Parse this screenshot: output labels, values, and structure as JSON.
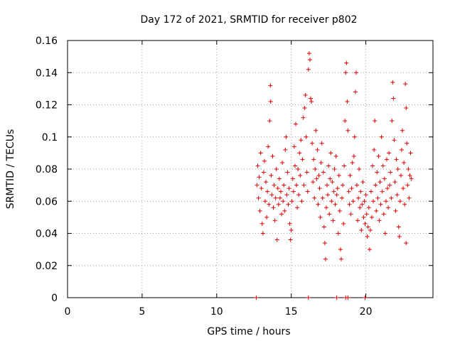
{
  "chart_data": {
    "type": "scatter",
    "title": "Day 172 of 2021, SRMTID for receiver p802",
    "xlabel": "GPS time / hours",
    "ylabel": "SRMTID / TECUs",
    "xlim": [
      0,
      24.5
    ],
    "ylim": [
      0,
      0.16
    ],
    "x_ticks": [
      0,
      5,
      10,
      15,
      20
    ],
    "x_tick_labels": [
      "0",
      "5",
      "10",
      "15",
      "20"
    ],
    "y_ticks": [
      0,
      0.02,
      0.04,
      0.06,
      0.08,
      0.1,
      0.12,
      0.14,
      0.16
    ],
    "y_tick_labels": [
      "0",
      "0.02",
      "0.04",
      "0.06",
      "0.08",
      "0.1",
      "0.12",
      "0.14",
      "0.16"
    ],
    "grid": true,
    "marker": "+",
    "series": [
      {
        "name": "SRMTID",
        "color": "#e00000",
        "points": [
          [
            12.65,
            0.0
          ],
          [
            16.15,
            0.0
          ],
          [
            18.05,
            0.0
          ],
          [
            18.65,
            0.0
          ],
          [
            18.8,
            0.0
          ],
          [
            19.95,
            0.0
          ],
          [
            12.7,
            0.07
          ],
          [
            12.75,
            0.082
          ],
          [
            12.8,
            0.062
          ],
          [
            12.85,
            0.075
          ],
          [
            12.9,
            0.054
          ],
          [
            12.95,
            0.09
          ],
          [
            13.0,
            0.068
          ],
          [
            13.05,
            0.046
          ],
          [
            13.1,
            0.04
          ],
          [
            13.15,
            0.078
          ],
          [
            13.2,
            0.085
          ],
          [
            13.25,
            0.06
          ],
          [
            13.3,
            0.072
          ],
          [
            13.35,
            0.05
          ],
          [
            13.4,
            0.066
          ],
          [
            13.45,
            0.094
          ],
          [
            13.5,
            0.058
          ],
          [
            13.55,
            0.11
          ],
          [
            13.6,
            0.132
          ],
          [
            13.62,
            0.122
          ],
          [
            13.65,
            0.076
          ],
          [
            13.7,
            0.064
          ],
          [
            13.75,
            0.088
          ],
          [
            13.8,
            0.056
          ],
          [
            13.85,
            0.07
          ],
          [
            13.9,
            0.048
          ],
          [
            13.95,
            0.062
          ],
          [
            14.0,
            0.08
          ],
          [
            14.05,
            0.036
          ],
          [
            14.1,
            0.068
          ],
          [
            14.15,
            0.058
          ],
          [
            14.2,
            0.074
          ],
          [
            14.25,
            0.062
          ],
          [
            14.3,
            0.066
          ],
          [
            14.35,
            0.052
          ],
          [
            14.4,
            0.084
          ],
          [
            14.45,
            0.06
          ],
          [
            14.5,
            0.07
          ],
          [
            14.55,
            0.054
          ],
          [
            14.6,
            0.092
          ],
          [
            14.65,
            0.1
          ],
          [
            14.7,
            0.064
          ],
          [
            14.75,
            0.078
          ],
          [
            14.8,
            0.058
          ],
          [
            14.85,
            0.068
          ],
          [
            14.9,
            0.046
          ],
          [
            14.95,
            0.036
          ],
          [
            15.0,
            0.042
          ],
          [
            15.05,
            0.06
          ],
          [
            15.1,
            0.074
          ],
          [
            15.15,
            0.066
          ],
          [
            15.2,
            0.094
          ],
          [
            15.25,
            0.082
          ],
          [
            15.3,
            0.108
          ],
          [
            15.35,
            0.07
          ],
          [
            15.4,
            0.056
          ],
          [
            15.45,
            0.08
          ],
          [
            15.5,
            0.064
          ],
          [
            15.55,
            0.09
          ],
          [
            15.6,
            0.076
          ],
          [
            15.65,
            0.098
          ],
          [
            15.7,
            0.06
          ],
          [
            15.75,
            0.086
          ],
          [
            15.8,
            0.112
          ],
          [
            15.85,
            0.07
          ],
          [
            15.9,
            0.118
          ],
          [
            15.95,
            0.126
          ],
          [
            16.0,
            0.1
          ],
          [
            16.05,
            0.078
          ],
          [
            16.1,
            0.066
          ],
          [
            16.15,
            0.142
          ],
          [
            16.2,
            0.152
          ],
          [
            16.25,
            0.148
          ],
          [
            16.3,
            0.124
          ],
          [
            16.35,
            0.122
          ],
          [
            16.4,
            0.096
          ],
          [
            16.45,
            0.072
          ],
          [
            16.5,
            0.086
          ],
          [
            16.55,
            0.062
          ],
          [
            16.6,
            0.08
          ],
          [
            16.65,
            0.104
          ],
          [
            16.7,
            0.074
          ],
          [
            16.75,
            0.092
          ],
          [
            16.8,
            0.058
          ],
          [
            16.85,
            0.076
          ],
          [
            16.9,
            0.068
          ],
          [
            16.95,
            0.05
          ],
          [
            17.0,
            0.084
          ],
          [
            17.05,
            0.096
          ],
          [
            17.1,
            0.062
          ],
          [
            17.15,
            0.078
          ],
          [
            17.2,
            0.044
          ],
          [
            17.25,
            0.034
          ],
          [
            17.3,
            0.024
          ],
          [
            17.35,
            0.056
          ],
          [
            17.4,
            0.07
          ],
          [
            17.45,
            0.064
          ],
          [
            17.5,
            0.082
          ],
          [
            17.55,
            0.052
          ],
          [
            17.6,
            0.074
          ],
          [
            17.65,
            0.09
          ],
          [
            17.7,
            0.06
          ],
          [
            17.75,
            0.072
          ],
          [
            17.8,
            0.048
          ],
          [
            17.85,
            0.066
          ],
          [
            17.9,
            0.08
          ],
          [
            17.95,
            0.058
          ],
          [
            18.0,
            0.088
          ],
          [
            18.05,
            0.064
          ],
          [
            18.1,
            0.068
          ],
          [
            18.15,
            0.04
          ],
          [
            18.2,
            0.076
          ],
          [
            18.25,
            0.054
          ],
          [
            18.3,
            0.03
          ],
          [
            18.35,
            0.024
          ],
          [
            18.4,
            0.062
          ],
          [
            18.45,
            0.07
          ],
          [
            18.5,
            0.046
          ],
          [
            18.55,
            0.082
          ],
          [
            18.6,
            0.11
          ],
          [
            18.65,
            0.14
          ],
          [
            18.7,
            0.146
          ],
          [
            18.75,
            0.122
          ],
          [
            18.8,
            0.104
          ],
          [
            18.85,
            0.066
          ],
          [
            18.9,
            0.058
          ],
          [
            18.95,
            0.076
          ],
          [
            19.0,
            0.052
          ],
          [
            19.05,
            0.068
          ],
          [
            19.1,
            0.084
          ],
          [
            19.15,
            0.06
          ],
          [
            19.2,
            0.088
          ],
          [
            19.25,
            0.1
          ],
          [
            19.3,
            0.128
          ],
          [
            19.35,
            0.14
          ],
          [
            19.4,
            0.07
          ],
          [
            19.45,
            0.048
          ],
          [
            19.5,
            0.062
          ],
          [
            19.55,
            0.08
          ],
          [
            19.6,
            0.056
          ],
          [
            19.65,
            0.066
          ],
          [
            19.7,
            0.042
          ],
          [
            19.75,
            0.058
          ],
          [
            19.8,
            0.072
          ],
          [
            19.85,
            0.05
          ],
          [
            19.9,
            0.06
          ],
          [
            19.95,
            0.046
          ],
          [
            20.0,
            0.064
          ],
          [
            20.05,
            0.052
          ],
          [
            20.1,
            0.038
          ],
          [
            20.15,
            0.044
          ],
          [
            20.2,
            0.056
          ],
          [
            20.25,
            0.03
          ],
          [
            20.3,
            0.042
          ],
          [
            20.35,
            0.066
          ],
          [
            20.4,
            0.05
          ],
          [
            20.45,
            0.082
          ],
          [
            20.5,
            0.06
          ],
          [
            20.55,
            0.092
          ],
          [
            20.6,
            0.11
          ],
          [
            20.65,
            0.07
          ],
          [
            20.7,
            0.054
          ],
          [
            20.75,
            0.078
          ],
          [
            20.8,
            0.062
          ],
          [
            20.85,
            0.088
          ],
          [
            20.9,
            0.048
          ],
          [
            20.95,
            0.072
          ],
          [
            21.0,
            0.058
          ],
          [
            21.05,
            0.1
          ],
          [
            21.1,
            0.066
          ],
          [
            21.15,
            0.082
          ],
          [
            21.2,
            0.052
          ],
          [
            21.25,
            0.074
          ],
          [
            21.3,
            0.04
          ],
          [
            21.35,
            0.06
          ],
          [
            21.4,
            0.086
          ],
          [
            21.45,
            0.068
          ],
          [
            21.5,
            0.056
          ],
          [
            21.55,
            0.09
          ],
          [
            21.6,
            0.07
          ],
          [
            21.65,
            0.078
          ],
          [
            21.7,
            0.062
          ],
          [
            21.75,
            0.11
          ],
          [
            21.8,
            0.134
          ],
          [
            21.85,
            0.124
          ],
          [
            21.9,
            0.098
          ],
          [
            21.95,
            0.072
          ],
          [
            22.0,
            0.054
          ],
          [
            22.05,
            0.086
          ],
          [
            22.1,
            0.064
          ],
          [
            22.15,
            0.08
          ],
          [
            22.2,
            0.044
          ],
          [
            22.25,
            0.038
          ],
          [
            22.3,
            0.06
          ],
          [
            22.35,
            0.076
          ],
          [
            22.4,
            0.092
          ],
          [
            22.45,
            0.104
          ],
          [
            22.5,
            0.068
          ],
          [
            22.55,
            0.084
          ],
          [
            22.6,
            0.058
          ],
          [
            22.65,
            0.133
          ],
          [
            22.7,
            0.118
          ],
          [
            22.75,
            0.096
          ],
          [
            22.8,
            0.07
          ],
          [
            22.85,
            0.08
          ],
          [
            22.9,
            0.062
          ],
          [
            22.95,
            0.076
          ],
          [
            23.0,
            0.09
          ],
          [
            23.05,
            0.074
          ],
          [
            22.7,
            0.034
          ]
        ]
      }
    ]
  }
}
